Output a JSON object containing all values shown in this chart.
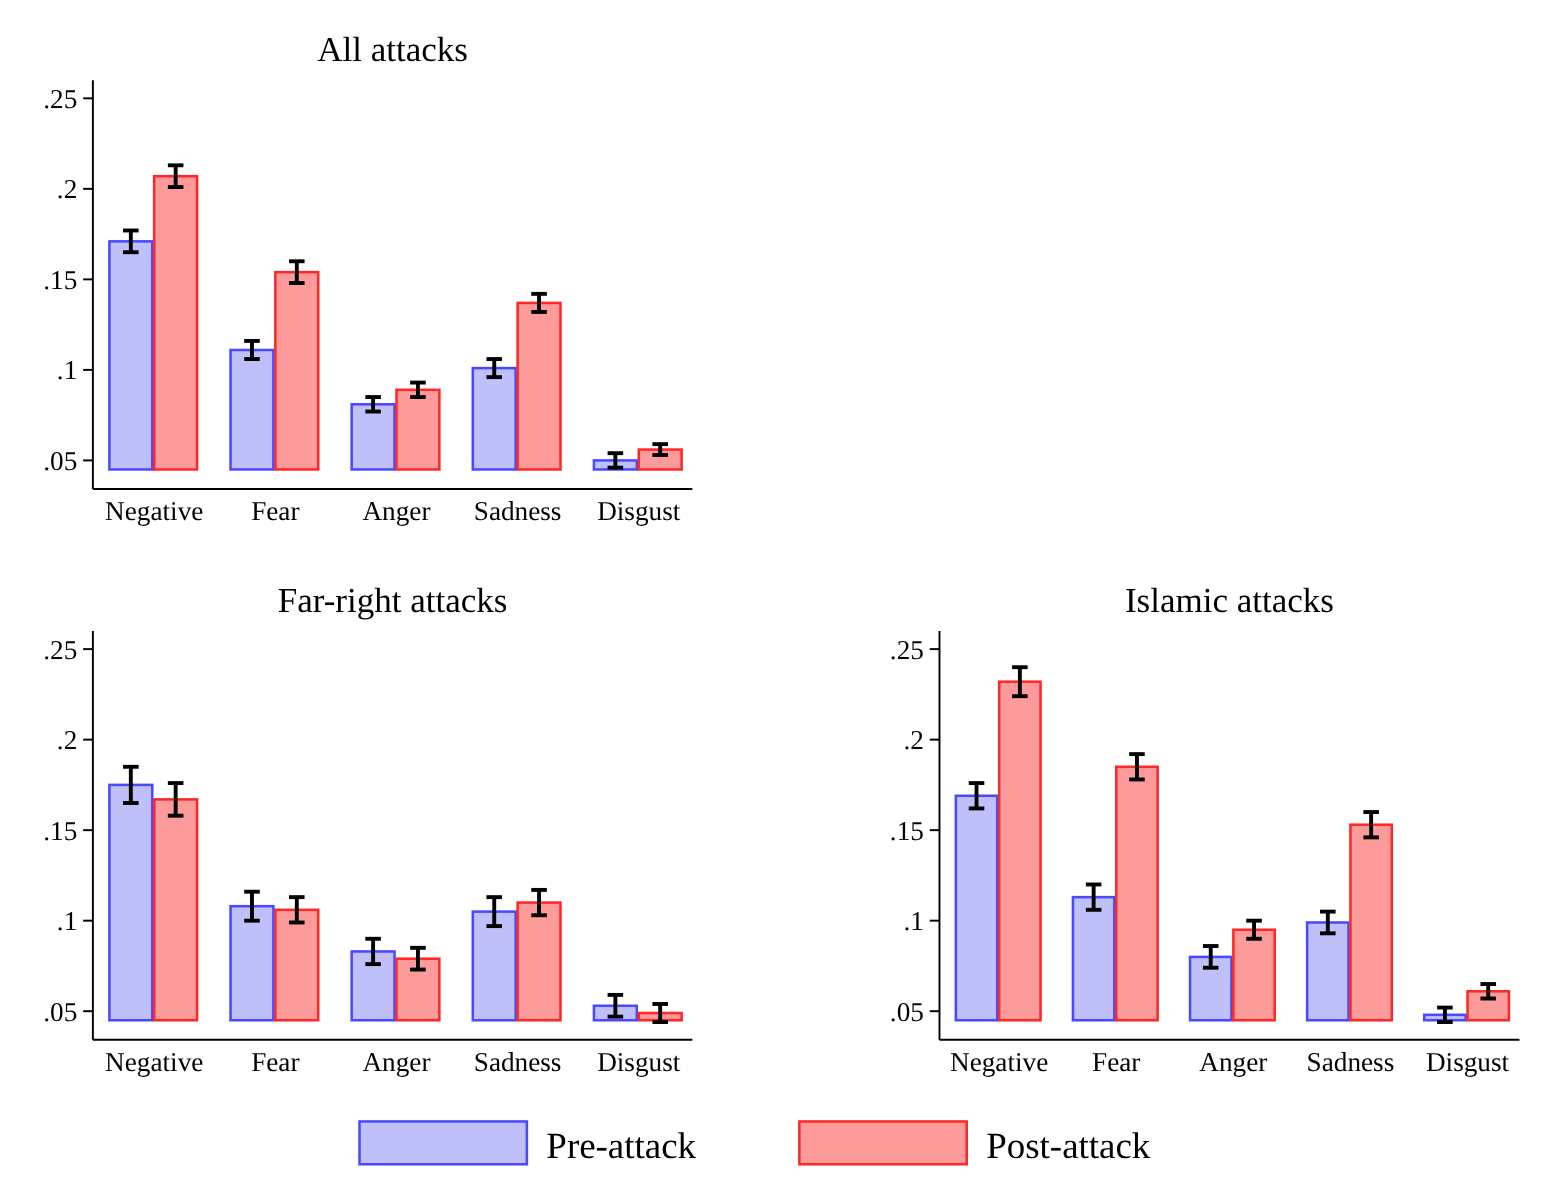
{
  "chart_data": [
    {
      "type": "bar",
      "title": "All attacks",
      "categories": [
        "Negative",
        "Fear",
        "Anger",
        "Sadness",
        "Disgust"
      ],
      "ylim": [
        0.045,
        0.26
      ],
      "yticks": [
        {
          "value": 0.05,
          "label": ".05"
        },
        {
          "value": 0.1,
          "label": ".1"
        },
        {
          "value": 0.15,
          "label": ".15"
        },
        {
          "value": 0.2,
          "label": ".2"
        },
        {
          "value": 0.25,
          "label": ".25"
        }
      ],
      "legend": "bottom",
      "series": [
        {
          "name": "Pre-attack",
          "color": "#bfbff9",
          "values": [
            0.171,
            0.111,
            0.081,
            0.101,
            0.05
          ],
          "errors": [
            0.006,
            0.005,
            0.004,
            0.005,
            0.004
          ]
        },
        {
          "name": "Post-attack",
          "color": "#fd9a9a",
          "values": [
            0.207,
            0.154,
            0.089,
            0.137,
            0.056
          ],
          "errors": [
            0.006,
            0.006,
            0.004,
            0.005,
            0.003
          ]
        }
      ]
    },
    {
      "type": "bar",
      "title": "Far-right attacks",
      "categories": [
        "Negative",
        "Fear",
        "Anger",
        "Sadness",
        "Disgust"
      ],
      "ylim": [
        0.045,
        0.26
      ],
      "yticks": [
        {
          "value": 0.05,
          "label": ".05"
        },
        {
          "value": 0.1,
          "label": ".1"
        },
        {
          "value": 0.15,
          "label": ".15"
        },
        {
          "value": 0.2,
          "label": ".2"
        },
        {
          "value": 0.25,
          "label": ".25"
        }
      ],
      "series": [
        {
          "color": "#bfbff9",
          "values": [
            0.175,
            0.108,
            0.083,
            0.105,
            0.053
          ],
          "errors": [
            0.01,
            0.008,
            0.007,
            0.008,
            0.006
          ]
        },
        {
          "color": "#fd9a9a",
          "values": [
            0.167,
            0.106,
            0.079,
            0.11,
            0.049
          ],
          "errors": [
            0.009,
            0.007,
            0.006,
            0.007,
            0.005
          ]
        }
      ]
    },
    {
      "type": "bar",
      "title": "Islamic attacks",
      "categories": [
        "Negative",
        "Fear",
        "Anger",
        "Sadness",
        "Disgust"
      ],
      "ylim": [
        0.045,
        0.26
      ],
      "yticks": [
        {
          "value": 0.05,
          "label": ".05"
        },
        {
          "value": 0.1,
          "label": ".1"
        },
        {
          "value": 0.15,
          "label": ".15"
        },
        {
          "value": 0.2,
          "label": ".2"
        },
        {
          "value": 0.25,
          "label": ".25"
        }
      ],
      "series": [
        {
          "color": "#bfbff9",
          "values": [
            0.169,
            0.113,
            0.08,
            0.099,
            0.048
          ],
          "errors": [
            0.007,
            0.007,
            0.006,
            0.006,
            0.004
          ]
        },
        {
          "color": "#fd9a9a",
          "values": [
            0.232,
            0.185,
            0.095,
            0.153,
            0.061
          ],
          "errors": [
            0.008,
            0.007,
            0.005,
            0.007,
            0.004
          ]
        }
      ]
    }
  ]
}
